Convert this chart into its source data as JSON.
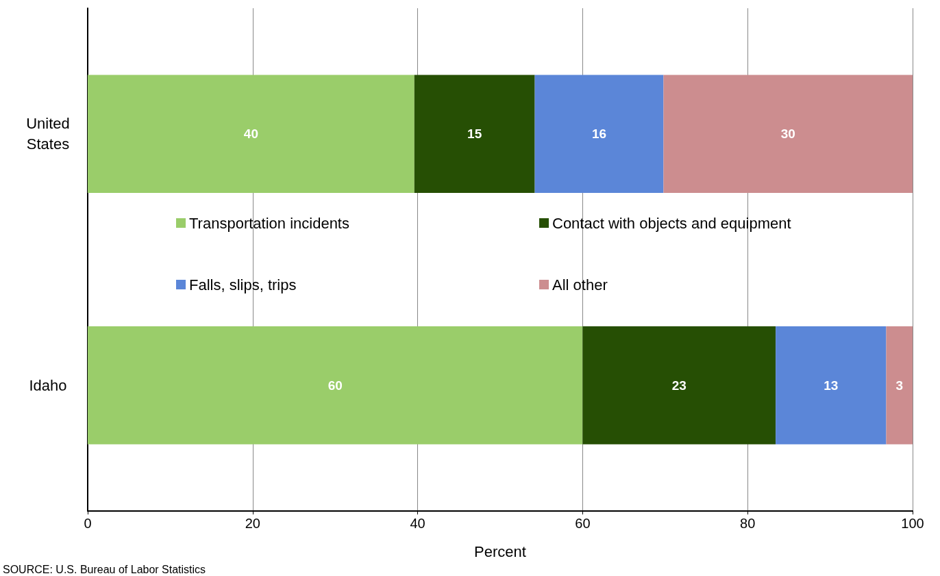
{
  "chart_data": {
    "type": "bar",
    "orientation": "horizontal",
    "stacked": true,
    "categories": [
      "United States",
      "Idaho"
    ],
    "series": [
      {
        "name": "Transportation incidents",
        "color": "#9acd6a",
        "values": [
          39.6,
          60.0
        ],
        "value_labels": [
          "40",
          "60"
        ]
      },
      {
        "name": "Contact with objects and equipment",
        "color": "#264f04",
        "values": [
          14.6,
          23.4
        ],
        "value_labels": [
          "15",
          "23"
        ]
      },
      {
        "name": "Falls, slips, trips",
        "color": "#5b86d8",
        "values": [
          15.6,
          13.4
        ],
        "value_labels": [
          "16",
          "13"
        ]
      },
      {
        "name": "All other",
        "color": "#cc8d8f",
        "values": [
          30.2,
          3.2
        ],
        "value_labels": [
          "30",
          "3"
        ]
      }
    ],
    "xlabel": "Percent",
    "xlim": [
      0,
      100
    ],
    "xticks": [
      0,
      20,
      40,
      60,
      80,
      100
    ],
    "grid": "x",
    "legend": "center",
    "annotations": [
      "SOURCE: U.S. Bureau of Labor Statistics"
    ]
  }
}
